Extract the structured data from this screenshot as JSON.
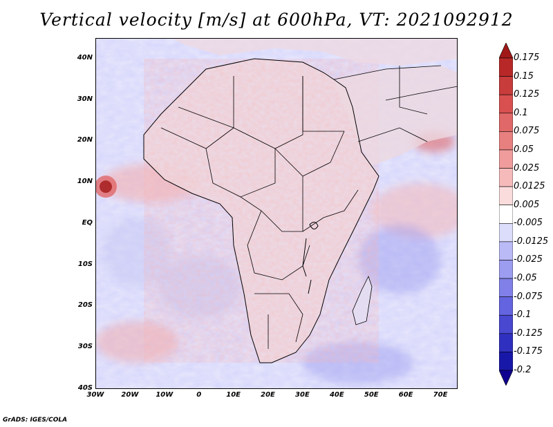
{
  "title": "Vertical velocity [m/s] at 600hPa, VT: 2021092912",
  "credit": "GrADS: IGES/COLA",
  "map": {
    "lon_range": [
      -30,
      75
    ],
    "lat_range": [
      -40,
      45
    ],
    "lat_labels": [
      {
        "value": 40,
        "text": "40N"
      },
      {
        "value": 30,
        "text": "30N"
      },
      {
        "value": 20,
        "text": "20N"
      },
      {
        "value": 10,
        "text": "10N"
      },
      {
        "value": 0,
        "text": "EQ"
      },
      {
        "value": -10,
        "text": "10S"
      },
      {
        "value": -20,
        "text": "20S"
      },
      {
        "value": -30,
        "text": "30S"
      },
      {
        "value": -40,
        "text": "40S"
      }
    ],
    "lon_labels": [
      {
        "value": -30,
        "text": "30W"
      },
      {
        "value": -20,
        "text": "20W"
      },
      {
        "value": -10,
        "text": "10W"
      },
      {
        "value": 0,
        "text": "0"
      },
      {
        "value": 10,
        "text": "10E"
      },
      {
        "value": 20,
        "text": "20E"
      },
      {
        "value": 30,
        "text": "30E"
      },
      {
        "value": 40,
        "text": "40E"
      },
      {
        "value": 50,
        "text": "50E"
      },
      {
        "value": 60,
        "text": "60E"
      },
      {
        "value": 70,
        "text": "70E"
      }
    ]
  },
  "colorbar": {
    "labels": [
      "0.175",
      "0.15",
      "0.125",
      "0.1",
      "0.075",
      "0.05",
      "0.025",
      "0.0125",
      "0.005",
      "-0.005",
      "-0.0125",
      "-0.025",
      "-0.05",
      "-0.075",
      "-0.1",
      "-0.125",
      "-0.175",
      "-0.2"
    ],
    "colors": [
      "#a01818",
      "#b82828",
      "#c83c3c",
      "#d85050",
      "#e06868",
      "#e88080",
      "#f09c9c",
      "#f6baba",
      "#fbdcdc",
      "#ffffff",
      "#dcdcfb",
      "#babaf6",
      "#9c9cf0",
      "#8080e8",
      "#6464e0",
      "#4848d0",
      "#3030c0",
      "#1818a8",
      "#100090"
    ]
  },
  "features": {
    "cyclone": {
      "lon": -27,
      "lat": 9
    }
  }
}
